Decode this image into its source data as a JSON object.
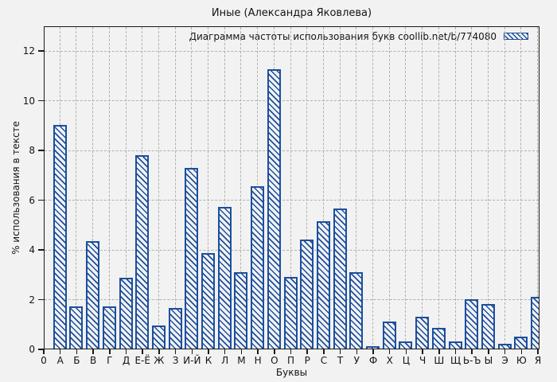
{
  "title": "Иные (Александра Яковлева)",
  "chart_data": {
    "type": "bar",
    "title": "Иные (Александра Яковлева)",
    "legend_label": "Диаграмма частоты использования букв coollib.net/b/774080",
    "legend_position": "top-right",
    "xlabel": "Буквы",
    "ylabel": "% использования в тексте",
    "origin_tick_label": "0",
    "categories": [
      "А",
      "Б",
      "В",
      "Г",
      "Д",
      "Е-Ё",
      "Ж",
      "З",
      "И-Й",
      "К",
      "Л",
      "М",
      "Н",
      "О",
      "П",
      "Р",
      "С",
      "Т",
      "У",
      "Ф",
      "Х",
      "Ц",
      "Ч",
      "Ш",
      "Щ",
      "Ь-Ъ",
      "Ы",
      "Э",
      "Ю",
      "Я"
    ],
    "values": [
      9.0,
      1.7,
      4.35,
      1.7,
      2.85,
      7.8,
      0.95,
      1.65,
      7.3,
      3.85,
      5.7,
      3.1,
      6.55,
      11.25,
      2.9,
      4.4,
      5.15,
      5.65,
      3.1,
      0.1,
      1.1,
      0.3,
      1.3,
      0.85,
      0.3,
      2.0,
      1.8,
      0.2,
      0.5,
      2.1
    ],
    "yticks": [
      0,
      2,
      4,
      6,
      8,
      10,
      12
    ],
    "ylim": [
      0,
      13
    ],
    "grid": true,
    "hatch": "diagonal-backslash",
    "colors": {
      "bar_edge": "#1b4f9e",
      "plot_background": "#f2f2f2",
      "page_background": "#f2f2f2",
      "grid": "#b0b0b0",
      "axis_border": "#1a1a1a",
      "text": "#141414"
    }
  }
}
